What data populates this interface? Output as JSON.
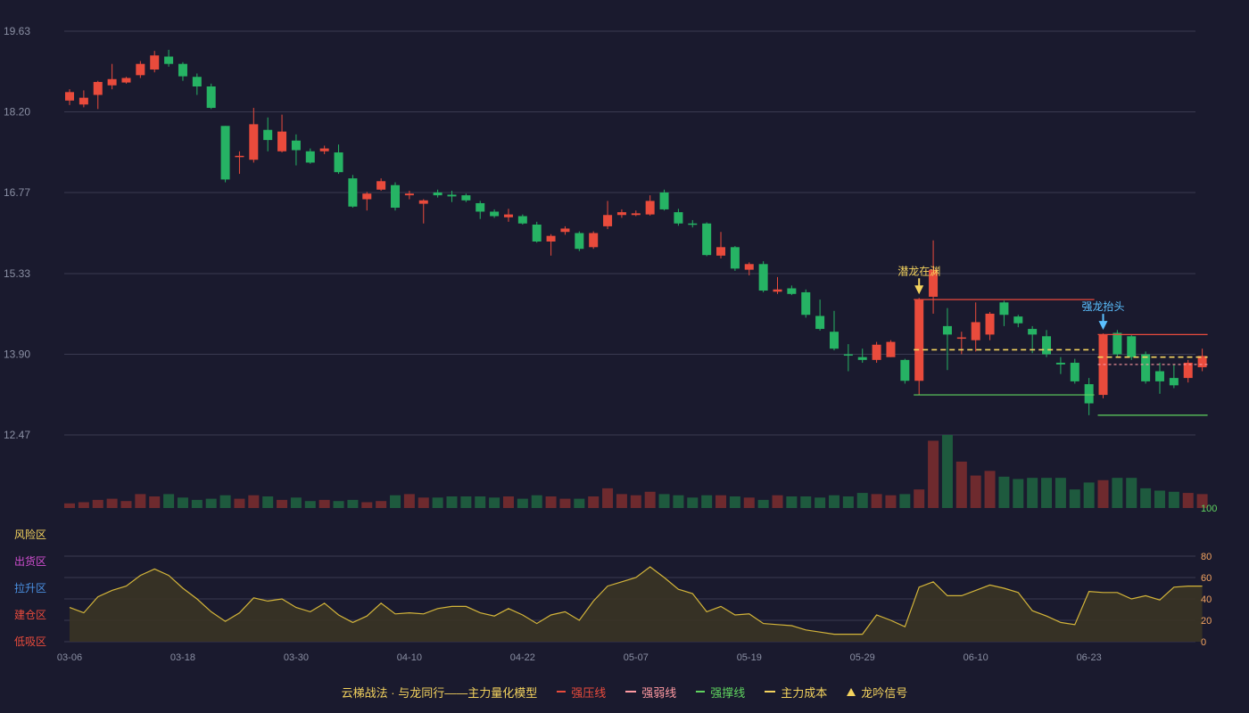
{
  "colors": {
    "background": "#1a1a2e",
    "up": "#e94b3c",
    "down": "#26b364",
    "grid": "#3a3a50",
    "axis_text": "#8a8fa3",
    "cost_line": "#f4d35e",
    "pressure": "#e94b3c",
    "weak": "#ff9aa2",
    "support": "#5fd35f",
    "signal": "#f4d35e",
    "signal_up": "#5bc0ff",
    "osc_line": "#d4b53a",
    "osc_fill": "#3a3425",
    "zone_risk": "#f4d35e",
    "zone_ship": "#d04fd0",
    "zone_lift": "#4a90e2",
    "zone_build": "#e94b3c",
    "zone_bottom": "#e94b3c",
    "right_axis": "#f4a460",
    "volume_max_label": "#5fd35f"
  },
  "chart_data": {
    "type": "candlestick",
    "price_axis": {
      "ticks": [
        "19.63",
        "18.20",
        "16.77",
        "15.33",
        "13.90",
        "12.47"
      ],
      "ylim": [
        12.47,
        19.63
      ]
    },
    "x_ticks": [
      {
        "index": 0,
        "label": "03-06"
      },
      {
        "index": 8,
        "label": "03-18"
      },
      {
        "index": 16,
        "label": "03-30"
      },
      {
        "index": 24,
        "label": "04-10"
      },
      {
        "index": 32,
        "label": "04-22"
      },
      {
        "index": 40,
        "label": "05-07"
      },
      {
        "index": 48,
        "label": "05-19"
      },
      {
        "index": 56,
        "label": "05-29"
      },
      {
        "index": 64,
        "label": "06-10"
      },
      {
        "index": 72,
        "label": "06-23"
      }
    ],
    "candles": [
      [
        18.4,
        18.55,
        18.32,
        18.6
      ],
      [
        18.33,
        18.45,
        18.28,
        18.58
      ],
      [
        18.5,
        18.73,
        18.25,
        18.75
      ],
      [
        18.67,
        18.78,
        18.6,
        19.05
      ],
      [
        18.72,
        18.8,
        18.7,
        18.82
      ],
      [
        18.85,
        19.05,
        18.8,
        19.1
      ],
      [
        18.95,
        19.2,
        18.9,
        19.28
      ],
      [
        19.18,
        19.05,
        19.0,
        19.3
      ],
      [
        19.05,
        18.83,
        18.75,
        19.08
      ],
      [
        18.82,
        18.65,
        18.5,
        18.88
      ],
      [
        18.65,
        18.27,
        18.25,
        18.7
      ],
      [
        17.95,
        17.0,
        16.95,
        17.95
      ],
      [
        17.4,
        17.42,
        17.1,
        17.5
      ],
      [
        17.35,
        17.98,
        17.3,
        18.27
      ],
      [
        17.88,
        17.7,
        17.5,
        18.1
      ],
      [
        17.5,
        17.85,
        17.48,
        18.15
      ],
      [
        17.69,
        17.52,
        17.25,
        17.8
      ],
      [
        17.5,
        17.3,
        17.28,
        17.55
      ],
      [
        17.5,
        17.55,
        17.45,
        17.6
      ],
      [
        17.48,
        17.13,
        17.1,
        17.62
      ],
      [
        17.02,
        16.52,
        16.5,
        17.08
      ],
      [
        16.65,
        16.75,
        16.45,
        16.78
      ],
      [
        16.82,
        16.97,
        16.8,
        17.02
      ],
      [
        16.9,
        16.5,
        16.45,
        16.95
      ],
      [
        16.72,
        16.75,
        16.65,
        16.8
      ],
      [
        16.57,
        16.63,
        16.22,
        16.65
      ],
      [
        16.77,
        16.72,
        16.68,
        16.82
      ],
      [
        16.73,
        16.7,
        16.6,
        16.8
      ],
      [
        16.72,
        16.63,
        16.6,
        16.75
      ],
      [
        16.58,
        16.43,
        16.3,
        16.62
      ],
      [
        16.43,
        16.35,
        16.32,
        16.47
      ],
      [
        16.33,
        16.38,
        16.25,
        16.48
      ],
      [
        16.35,
        16.22,
        16.2,
        16.38
      ],
      [
        16.2,
        15.9,
        15.88,
        16.25
      ],
      [
        15.9,
        16.0,
        15.65,
        16.03
      ],
      [
        16.07,
        16.13,
        16.02,
        16.17
      ],
      [
        16.05,
        15.77,
        15.73,
        16.08
      ],
      [
        15.8,
        16.05,
        15.77,
        16.08
      ],
      [
        16.17,
        16.37,
        16.12,
        16.62
      ],
      [
        16.37,
        16.42,
        16.32,
        16.47
      ],
      [
        16.37,
        16.4,
        16.35,
        16.45
      ],
      [
        16.38,
        16.62,
        16.36,
        16.72
      ],
      [
        16.77,
        16.47,
        16.45,
        16.82
      ],
      [
        16.42,
        16.22,
        16.18,
        16.48
      ],
      [
        16.22,
        16.2,
        16.15,
        16.28
      ],
      [
        16.22,
        15.66,
        15.64,
        16.24
      ],
      [
        15.65,
        15.8,
        15.6,
        16.07
      ],
      [
        15.8,
        15.42,
        15.38,
        15.82
      ],
      [
        15.4,
        15.5,
        15.3,
        15.53
      ],
      [
        15.5,
        15.03,
        15.0,
        15.55
      ],
      [
        15.01,
        15.05,
        14.97,
        15.27
      ],
      [
        15.07,
        14.97,
        14.95,
        15.12
      ],
      [
        15.0,
        14.6,
        14.55,
        15.05
      ],
      [
        14.58,
        14.35,
        14.32,
        14.87
      ],
      [
        14.3,
        14.0,
        13.97,
        14.67
      ],
      [
        13.9,
        13.88,
        13.6,
        14.08
      ],
      [
        13.85,
        13.8,
        13.75,
        14.0
      ],
      [
        13.8,
        14.07,
        13.75,
        14.12
      ],
      [
        13.85,
        14.12,
        13.85,
        14.15
      ],
      [
        13.8,
        13.43,
        13.38,
        13.82
      ],
      [
        13.43,
        14.87,
        13.18,
        14.9
      ],
      [
        14.92,
        15.4,
        14.62,
        15.92
      ],
      [
        14.4,
        14.25,
        13.62,
        14.72
      ],
      [
        14.18,
        14.2,
        13.9,
        14.3
      ],
      [
        14.15,
        14.47,
        13.95,
        14.82
      ],
      [
        14.25,
        14.62,
        14.15,
        14.65
      ],
      [
        14.82,
        14.6,
        14.4,
        14.85
      ],
      [
        14.57,
        14.45,
        14.38,
        14.6
      ],
      [
        14.35,
        14.25,
        13.92,
        14.4
      ],
      [
        14.22,
        13.9,
        13.85,
        14.33
      ],
      [
        13.75,
        13.72,
        13.55,
        13.85
      ],
      [
        13.75,
        13.42,
        13.38,
        13.82
      ],
      [
        13.37,
        13.03,
        12.82,
        13.48
      ],
      [
        13.18,
        14.25,
        13.12,
        14.27
      ],
      [
        14.28,
        13.9,
        13.85,
        14.33
      ],
      [
        14.22,
        13.85,
        13.8,
        14.25
      ],
      [
        13.9,
        13.42,
        13.38,
        13.95
      ],
      [
        13.6,
        13.42,
        13.2,
        13.75
      ],
      [
        13.48,
        13.35,
        13.3,
        13.72
      ],
      [
        13.48,
        13.75,
        13.4,
        13.8
      ],
      [
        13.67,
        13.87,
        13.6,
        14.0
      ]
    ],
    "volume": [
      4,
      5,
      7,
      8,
      6,
      12,
      10,
      12,
      9,
      7,
      8,
      11,
      8,
      11,
      10,
      7,
      9,
      6,
      7,
      6,
      7,
      5,
      6,
      11,
      12,
      9,
      9,
      10,
      10,
      10,
      9,
      10,
      8,
      11,
      10,
      8,
      8,
      10,
      17,
      12,
      11,
      14,
      12,
      11,
      9,
      11,
      11,
      10,
      9,
      7,
      11,
      10,
      10,
      9,
      11,
      10,
      13,
      12,
      11,
      12,
      16,
      58,
      63,
      40,
      28,
      32,
      27,
      25,
      26,
      26,
      26,
      16,
      22,
      24,
      26,
      26,
      17,
      15,
      14,
      13,
      12
    ],
    "overlay_lines": {
      "strong_pressure": [
        {
          "from": 60,
          "to": 72,
          "price": 14.87
        },
        {
          "from": 73,
          "to": 80,
          "price": 14.25
        }
      ],
      "strong_weak": [
        {
          "from": 73,
          "to": 80,
          "price": 13.72
        }
      ],
      "strong_support": [
        {
          "from": 60,
          "to": 72,
          "price": 13.18
        },
        {
          "from": 73,
          "to": 80,
          "price": 12.82
        }
      ],
      "main_cost": [
        {
          "from": 60,
          "to": 72,
          "price": 13.98
        },
        {
          "from": 73,
          "to": 80,
          "price": 13.85
        }
      ]
    },
    "signals": [
      {
        "index": 60,
        "label": "潜龙在渊",
        "direction": "down"
      },
      {
        "index": 73,
        "label": "强龙抬头",
        "direction": "down"
      }
    ],
    "volume_axis_label": "100",
    "oscillator": {
      "yticks": [
        "80",
        "60",
        "40",
        "20",
        "0"
      ],
      "ylim": [
        0,
        100
      ],
      "zones": [
        "风险区",
        "出货区",
        "拉升区",
        "建仓区",
        "低吸区"
      ],
      "values": [
        32,
        27,
        42,
        48,
        52,
        62,
        68,
        62,
        50,
        40,
        28,
        19,
        27,
        41,
        38,
        40,
        32,
        28,
        36,
        25,
        18,
        24,
        36,
        26,
        27,
        26,
        31,
        33,
        33,
        27,
        24,
        31,
        25,
        17,
        25,
        28,
        20,
        38,
        52,
        56,
        60,
        70,
        60,
        49,
        45,
        28,
        33,
        25,
        26,
        17,
        16,
        15,
        11,
        9,
        7,
        7,
        7,
        25,
        20,
        14,
        51,
        56,
        43,
        43,
        48,
        53,
        50,
        46,
        29,
        24,
        18,
        16,
        47,
        46,
        46,
        40,
        43,
        39,
        51,
        52,
        52
      ]
    },
    "legend": [
      {
        "label": "云梯战法 · 与龙同行——主力量化模型",
        "kind": "text",
        "color": "#f4d35e"
      },
      {
        "label": "强压线",
        "kind": "line",
        "color": "#e94b3c"
      },
      {
        "label": "强弱线",
        "kind": "dash",
        "color": "#ff9aa2"
      },
      {
        "label": "强撑线",
        "kind": "line",
        "color": "#5fd35f"
      },
      {
        "label": "主力成本",
        "kind": "dash",
        "color": "#f4d35e"
      },
      {
        "label": "龙吟信号",
        "kind": "triangle",
        "color": "#f4d35e"
      }
    ]
  }
}
